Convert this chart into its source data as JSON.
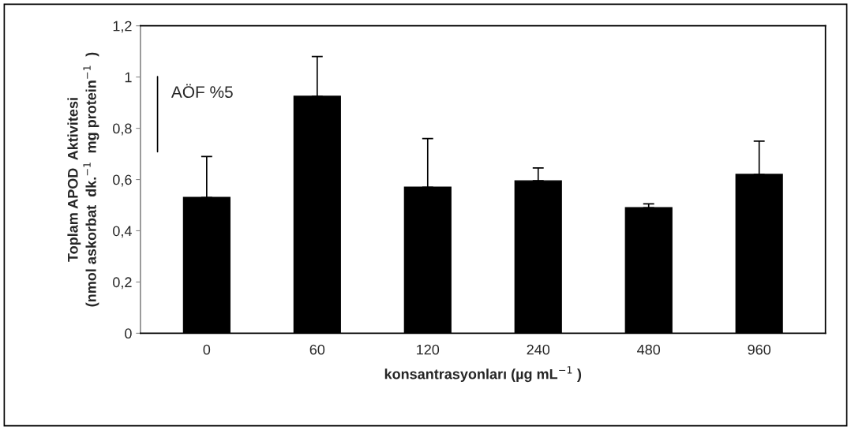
{
  "chart_data": {
    "type": "bar",
    "xlabel": "konsantrasyonları (µg mL$^{−1}$ )",
    "ylabel": "Toplam APOD  Aktivitesi\n(nmol askorbat  dk.$^{−1}$  mg protein$^{−1}$  )",
    "categories": [
      "0",
      "60",
      "120",
      "240",
      "480",
      "960"
    ],
    "values": [
      0.53,
      0.925,
      0.57,
      0.595,
      0.49,
      0.62
    ],
    "errors": [
      0.16,
      0.155,
      0.19,
      0.05,
      0.015,
      0.13
    ],
    "color": "#000000",
    "ylim": [
      0,
      1.2
    ],
    "yticks": [
      {
        "value": 0,
        "label": "0"
      },
      {
        "value": 0.2,
        "label": "0,2"
      },
      {
        "value": 0.4,
        "label": "0,4"
      },
      {
        "value": 0.6,
        "label": "0,6"
      },
      {
        "value": 0.8,
        "label": "0,8"
      },
      {
        "value": 1,
        "label": "1"
      },
      {
        "value": 1.2,
        "label": "1,2"
      }
    ],
    "annotations": [
      "AÖF %5"
    ],
    "grid": false,
    "legend": false
  }
}
